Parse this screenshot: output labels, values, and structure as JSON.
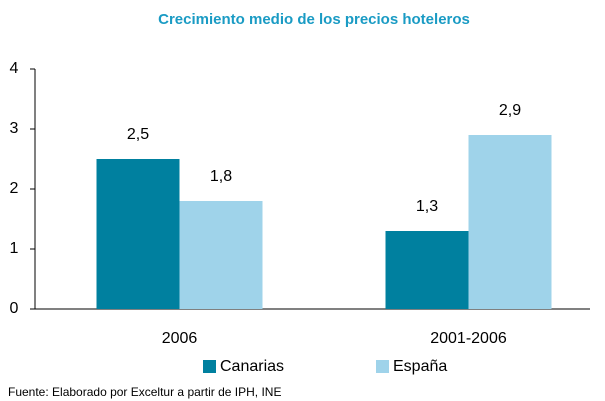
{
  "chart_data": {
    "type": "bar",
    "title": "Crecimiento medio de los precios hoteleros",
    "categories": [
      "2006",
      "2001-2006"
    ],
    "series": [
      {
        "name": "Canarias",
        "color": "#00809f",
        "values": [
          2.5,
          1.3
        ],
        "value_labels": [
          "2,5",
          "1,3"
        ]
      },
      {
        "name": "España",
        "color": "#9fd3ea",
        "values": [
          1.8,
          2.9
        ],
        "value_labels": [
          "1,8",
          "2,9"
        ]
      }
    ],
    "ylim": [
      0,
      4
    ],
    "yticks": [
      0,
      1,
      2,
      3,
      4
    ],
    "grid": false,
    "legend": "bottom",
    "source": "Fuente: Elaborado por Exceltur a partir de IPH, INE"
  }
}
